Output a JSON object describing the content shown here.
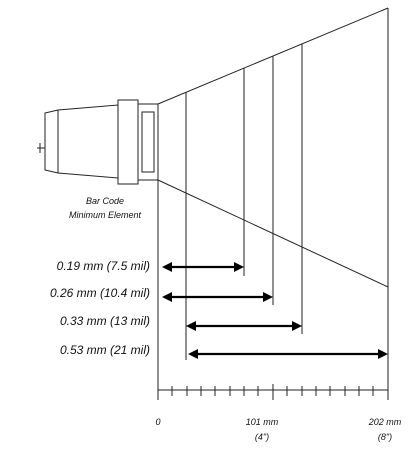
{
  "heading": {
    "line1": "Bar Code",
    "line2": "Minimum Element"
  },
  "resolutions": [
    {
      "label": "0.19 mm (7.5 mil)"
    },
    {
      "label": "0.26 mm (10.4 mil)"
    },
    {
      "label": "0.33 mm (13 mil)"
    },
    {
      "label": "0.53 mm (21 mil)"
    }
  ],
  "axis": {
    "tick_0": "0",
    "tick_mid_top": "101 mm",
    "tick_mid_bottom": "(4\")",
    "tick_end_top": "202 mm",
    "tick_end_bottom": "(8\")"
  },
  "colors": {
    "line": "#222222",
    "arrow": "#000000",
    "background": "#ffffff"
  }
}
